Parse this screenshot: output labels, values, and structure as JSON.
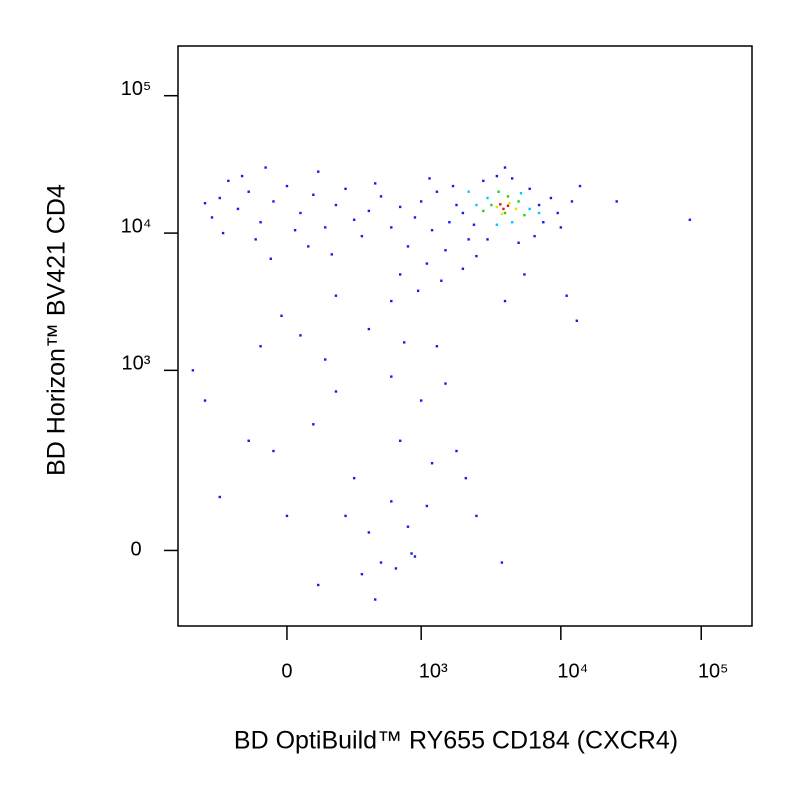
{
  "chart_data": {
    "type": "scatter",
    "xlabel": "BD OptiBuild™ RY655 CD184 (CXCR4)",
    "ylabel": "BD Horizon™ BV421 CD4",
    "xscale": "biexponential",
    "yscale": "biexponential",
    "xlim": [
      -650,
      230000
    ],
    "ylim": [
      -160,
      230000
    ],
    "xticks": [
      0,
      {
        "value": 1000,
        "label": "10³"
      },
      {
        "value": 10000,
        "label": "10⁴"
      },
      {
        "value": 100000,
        "label": "10⁵"
      }
    ],
    "yticks": [
      0,
      {
        "value": 1000,
        "label": "10³"
      },
      {
        "value": 10000,
        "label": "10⁴"
      },
      {
        "value": 100000,
        "label": "10⁵"
      }
    ],
    "series": [
      {
        "color": "#1a1ae6",
        "x": [
          -300,
          -200,
          -150,
          -100,
          -50,
          0,
          50,
          100,
          150,
          200,
          -350,
          -250,
          -120,
          80,
          250,
          300,
          -400,
          400,
          500,
          -180,
          30,
          -60,
          180,
          350,
          450,
          600,
          -80,
          120,
          -280,
          700,
          800,
          900,
          1000,
          1100,
          1200,
          1300,
          1500,
          1600,
          1800,
          2000,
          2200,
          1400,
          700,
          950,
          1700,
          2500,
          600,
          1150,
          2000,
          2800,
          3500,
          4500,
          6000,
          7000,
          7500,
          6500,
          5000,
          3000,
          2400,
          8500,
          9500,
          4000,
          10000,
          12000,
          13700,
          25000,
          83000,
          11000,
          13000,
          5500,
          4000,
          -20,
          50,
          150,
          200,
          100,
          -50,
          300,
          250,
          400,
          500,
          350,
          600,
          700,
          800,
          900,
          1000,
          1200,
          1500,
          1800,
          -150,
          -300,
          -400,
          -500,
          0,
          120,
          450,
          650,
          850,
          1100,
          2100,
          2500,
          3800,
          1300,
          400,
          600,
          200,
          -100,
          750
        ],
        "values": [
          18000,
          15000,
          20000,
          12000,
          17000,
          22000,
          14000,
          19000,
          11000,
          16000,
          13000,
          24000,
          9000,
          8000,
          21000,
          12500,
          16500,
          14500,
          18500,
          26000,
          10500,
          6500,
          7000,
          9500,
          23000,
          11000,
          30000,
          28000,
          10000,
          15500,
          8000,
          13000,
          17000,
          6000,
          10500,
          20000,
          7500,
          12000,
          16000,
          5500,
          9000,
          4500,
          5000,
          3800,
          22000,
          6800,
          3200,
          25000,
          14000,
          24000,
          26000,
          25000,
          21000,
          16000,
          12000,
          9500,
          8500,
          9000,
          11500,
          18000,
          14000,
          30000,
          11000,
          17000,
          22000,
          17000,
          12500,
          3500,
          2300,
          5000,
          3200,
          2500,
          1800,
          1200,
          700,
          400,
          250,
          150,
          60,
          30,
          -20,
          -40,
          90,
          300,
          40,
          -10,
          600,
          200,
          800,
          250,
          300,
          100,
          600,
          1000,
          60,
          -60,
          -90,
          -30,
          -5,
          80,
          150,
          60,
          -20,
          1500,
          2000,
          900,
          3500,
          1500,
          1600
        ]
      },
      {
        "color": "#00c8ff",
        "x": [
          3000,
          4500,
          2500,
          6000,
          3500,
          5200,
          2200,
          7000
        ],
        "values": [
          18000,
          12000,
          16000,
          15000,
          11500,
          19500,
          20000,
          14000
        ]
      },
      {
        "color": "#20d020",
        "x": [
          3200,
          4000,
          5000,
          2800,
          4200,
          5500,
          3600
        ],
        "values": [
          16000,
          14000,
          17000,
          14500,
          18500,
          13500,
          20000
        ]
      },
      {
        "color": "#e8e000",
        "x": [
          3500,
          4300,
          3800,
          4800
        ],
        "values": [
          15500,
          16500,
          13800,
          15000
        ]
      },
      {
        "color": "#e81010",
        "x": [
          3900,
          4200,
          3700
        ],
        "values": [
          15000,
          15800,
          16200
        ]
      }
    ]
  }
}
